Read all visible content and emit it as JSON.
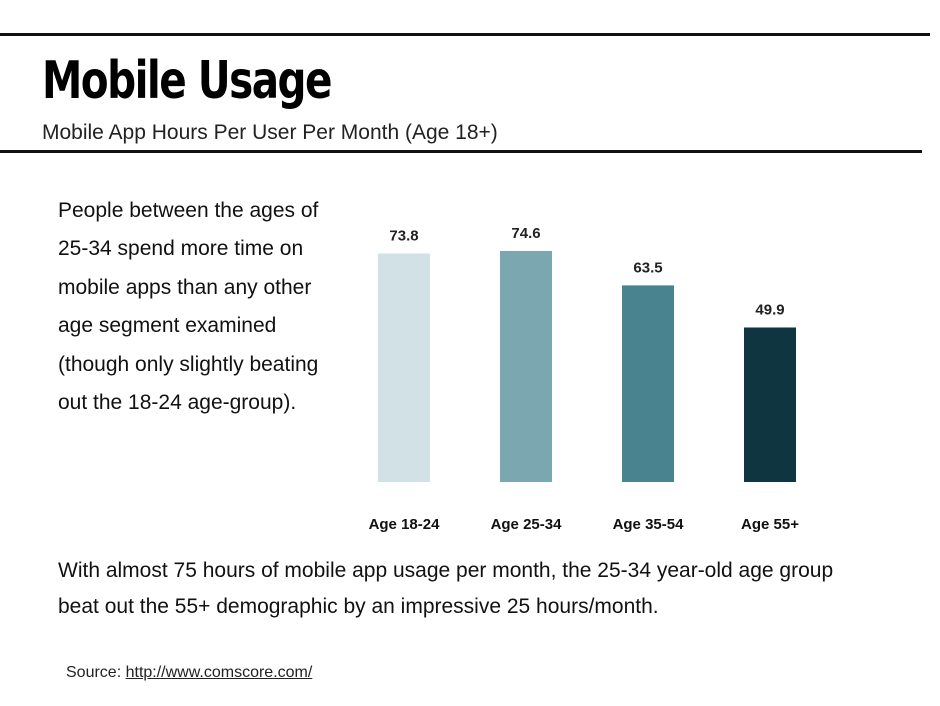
{
  "header": {
    "title": "Mobile Usage",
    "subtitle": "Mobile App Hours Per User Per Month (Age 18+)"
  },
  "intro_text": "People between the ages of 25-34 spend more time on mobile apps than any other age segment examined (though only slightly beating out the 18-24 age-group).",
  "chart_data": {
    "type": "bar",
    "categories": [
      "Age 18-24",
      "Age 25-34",
      "Age 35-54",
      "Age 55+"
    ],
    "values": [
      73.8,
      74.6,
      63.5,
      49.9
    ],
    "data_labels": [
      "73.8",
      "74.6",
      "63.5",
      "49.9"
    ],
    "colors": [
      "#d1e1e5",
      "#7ba7b0",
      "#4a8390",
      "#0f3540"
    ],
    "ylim": [
      0,
      100
    ],
    "grid": false,
    "legend": "none",
    "title": "",
    "xlabel": "",
    "ylabel": ""
  },
  "summary_text": "With almost 75 hours of mobile app usage per month, the 25-34 year-old age group beat out the 55+ demographic by an impressive 25 hours/month.",
  "source": {
    "label": "Source:",
    "link_text": "http://www.comscore.com/"
  }
}
